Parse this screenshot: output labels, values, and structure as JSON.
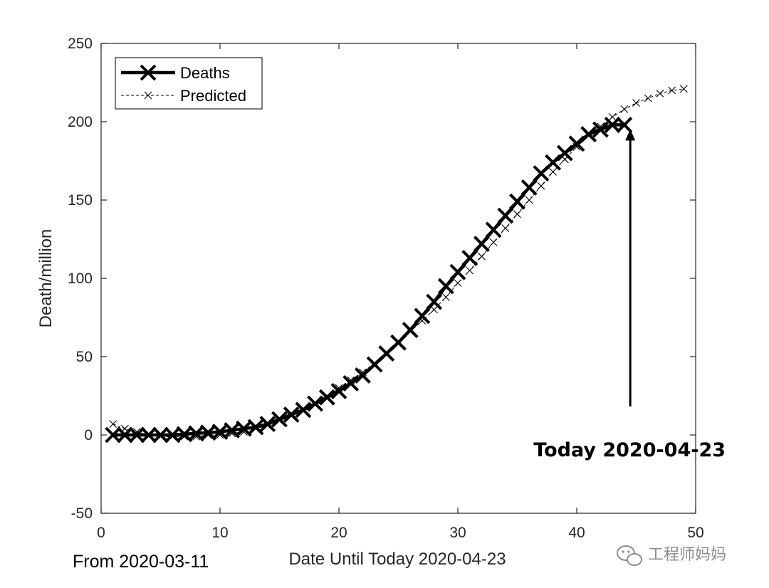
{
  "chart_data": {
    "type": "line",
    "title": "",
    "xlabel": "Date Until Today 2020-04-23",
    "ylabel": "Death/million",
    "xlim": [
      0,
      50
    ],
    "ylim": [
      -50,
      250
    ],
    "xticks": [
      0,
      10,
      20,
      30,
      40,
      50
    ],
    "yticks": [
      -50,
      0,
      50,
      100,
      150,
      200,
      250
    ],
    "grid": false,
    "legend_position": "top-left",
    "series": [
      {
        "name": "Deaths",
        "style": "solid thick line with large x markers",
        "color": "#000000",
        "x": [
          1,
          2,
          3,
          4,
          5,
          6,
          7,
          8,
          9,
          10,
          11,
          12,
          13,
          14,
          15,
          16,
          17,
          18,
          19,
          20,
          21,
          22,
          23,
          24,
          25,
          26,
          27,
          28,
          29,
          30,
          31,
          32,
          33,
          34,
          35,
          36,
          37,
          38,
          39,
          40,
          41,
          42,
          43,
          44
        ],
        "y": [
          0,
          0,
          0,
          0,
          0,
          0,
          0.5,
          1,
          1.5,
          2,
          3,
          4,
          5,
          7,
          10,
          13,
          16,
          20,
          24,
          28,
          33,
          38,
          45,
          52,
          59,
          67,
          76,
          85,
          95,
          104,
          113,
          122,
          131,
          140,
          149,
          158,
          167,
          174,
          180,
          186,
          192,
          195,
          198,
          198
        ]
      },
      {
        "name": "Predicted",
        "style": "thin dashed line with small x markers",
        "color": "#000000",
        "x": [
          1,
          2,
          3,
          4,
          5,
          6,
          7,
          8,
          9,
          10,
          11,
          12,
          13,
          14,
          15,
          16,
          17,
          18,
          19,
          20,
          21,
          22,
          23,
          24,
          25,
          26,
          27,
          28,
          29,
          30,
          31,
          32,
          33,
          34,
          35,
          36,
          37,
          38,
          39,
          40,
          41,
          42,
          43,
          44,
          45,
          46,
          47,
          48,
          49
        ],
        "y": [
          7,
          4,
          2,
          0,
          -1,
          -1,
          -1,
          -1,
          0,
          0,
          1,
          2,
          4,
          6,
          9,
          12,
          16,
          20,
          25,
          30,
          35,
          40,
          46,
          52,
          59,
          66,
          73,
          80,
          88,
          97,
          105,
          114,
          123,
          132,
          141,
          150,
          159,
          168,
          176,
          184,
          191,
          197,
          203,
          208,
          212,
          215,
          218,
          220,
          221
        ]
      }
    ],
    "annotations": [
      {
        "text": "Today 2020-04-23",
        "arrow_tip_x": 44.5,
        "arrow_tip_y": 198,
        "arrow_tail_y": 10,
        "text_x": 44.5,
        "text_y": -9
      }
    ],
    "footer_left": "From 2020-03-11"
  },
  "watermark": {
    "text": "工程师妈妈",
    "icon": "wechat-icon"
  }
}
